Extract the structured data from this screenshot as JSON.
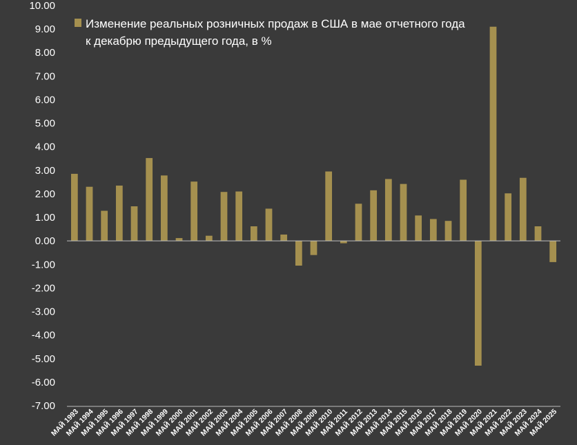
{
  "chart_data": {
    "type": "bar",
    "legend": {
      "line1": "Изменение реальных розничных продаж в США в мае отчетного года",
      "line2": "к декабрю предыдущего года, в %",
      "placement": "top"
    },
    "categories": [
      "МАЙ 1993",
      "МАЙ 1994",
      "МАЙ 1995",
      "МАЙ 1996",
      "МАЙ 1997",
      "МАЙ 1998",
      "МАЙ 1999",
      "МАЙ 2000",
      "МАЙ 2001",
      "МАЙ 2002",
      "МАЙ 2003",
      "МАЙ 2004",
      "МАЙ 2005",
      "МАЙ 2006",
      "МАЙ 2007",
      "МАЙ 2008",
      "МАЙ 2009",
      "МАЙ 2010",
      "МАЙ 2011",
      "МАЙ 2012",
      "МАЙ 2013",
      "МАЙ 2014",
      "МАЙ 2015",
      "МАЙ 2016",
      "МАЙ 2017",
      "МАЙ 2018",
      "МАЙ 2019",
      "МАЙ 2020",
      "МАЙ 2021",
      "МАЙ 2022",
      "МАЙ 2023",
      "МАЙ 2024",
      "МАЙ 2025"
    ],
    "values": [
      2.85,
      2.3,
      1.28,
      2.35,
      1.47,
      3.52,
      2.78,
      0.12,
      2.52,
      0.22,
      2.08,
      2.1,
      0.62,
      1.37,
      0.27,
      -1.05,
      -0.6,
      2.95,
      -0.1,
      1.58,
      2.15,
      2.63,
      2.42,
      1.08,
      0.93,
      0.85,
      2.6,
      -5.3,
      9.1,
      2.02,
      2.68,
      0.62,
      -0.9
    ],
    "yticks": [
      "10.00",
      "9.00",
      "8.00",
      "7.00",
      "6.00",
      "5.00",
      "4.00",
      "3.00",
      "2.00",
      "1.00",
      "0.00",
      "-1.00",
      "-2.00",
      "-3.00",
      "-4.00",
      "-5.00",
      "-6.00",
      "-7.00"
    ],
    "ylim": [
      -7,
      10
    ],
    "grid": false,
    "colors": {
      "bar": "#a5904f",
      "axis": "#bfbfbf",
      "background": "#3a3a3a"
    }
  }
}
